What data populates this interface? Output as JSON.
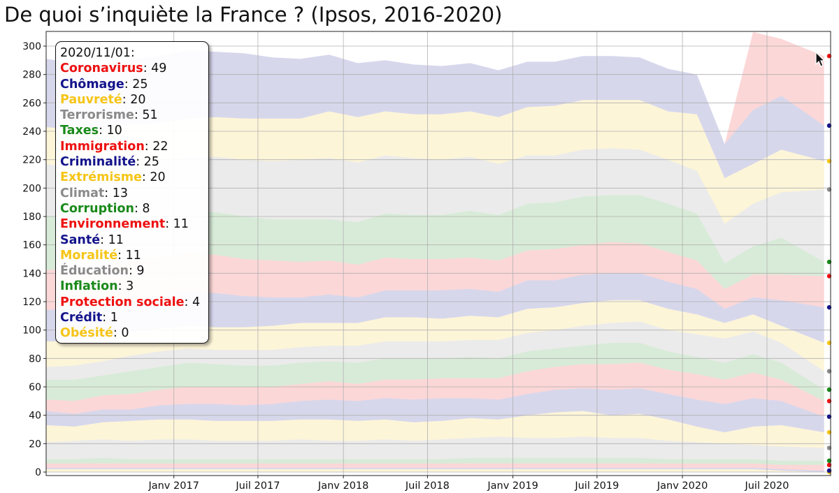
{
  "chart_data": {
    "type": "area",
    "title": "De quoi s’inquiète la France ? (Ipsos, 2016-2020)",
    "xlabel": "",
    "ylabel": "",
    "ylim": [
      0,
      300
    ],
    "yticks": [
      0,
      20,
      40,
      60,
      80,
      100,
      120,
      140,
      160,
      180,
      200,
      220,
      240,
      260,
      280,
      300
    ],
    "xticks": [
      {
        "label": "Janv 2017",
        "x": "2017-01-01"
      },
      {
        "label": "Juil 2017",
        "x": "2017-07-01"
      },
      {
        "label": "Janv 2018",
        "x": "2018-01-01"
      },
      {
        "label": "Juil 2018",
        "x": "2018-07-01"
      },
      {
        "label": "Janv 2019",
        "x": "2019-01-01"
      },
      {
        "label": "Juil 2019",
        "x": "2019-07-01"
      },
      {
        "label": "Janv 2020",
        "x": "2020-01-01"
      },
      {
        "label": "Juil 2020",
        "x": "2020-07-01"
      }
    ],
    "xlim": [
      "2016-04-01",
      "2020-11-15"
    ],
    "grid": true,
    "stacked": true,
    "x": [
      "2016-04-01",
      "2016-06-01",
      "2016-08-01",
      "2016-10-01",
      "2016-12-01",
      "2017-02-01",
      "2017-04-01",
      "2017-06-01",
      "2017-08-01",
      "2017-10-01",
      "2017-12-01",
      "2018-02-01",
      "2018-04-01",
      "2018-06-01",
      "2018-08-01",
      "2018-10-01",
      "2018-12-01",
      "2019-02-01",
      "2019-04-01",
      "2019-06-01",
      "2019-08-01",
      "2019-10-01",
      "2019-12-01",
      "2020-02-01",
      "2020-04-01",
      "2020-06-01",
      "2020-08-01",
      "2020-11-01"
    ],
    "series": [
      {
        "name": "Obésité",
        "color": "#f5c518",
        "values": [
          2,
          2,
          2,
          2,
          2,
          2,
          2,
          2,
          2,
          2,
          2,
          2,
          2,
          2,
          2,
          2,
          2,
          2,
          2,
          2,
          2,
          2,
          2,
          2,
          2,
          2,
          1,
          0
        ]
      },
      {
        "name": "Crédit",
        "color": "#14148c",
        "values": [
          1,
          1,
          1,
          1,
          1,
          1,
          1,
          1,
          1,
          1,
          1,
          1,
          1,
          1,
          1,
          1,
          1,
          1,
          1,
          1,
          1,
          1,
          1,
          1,
          1,
          1,
          1,
          1
        ]
      },
      {
        "name": "Protection sociale",
        "color": "#ee1111",
        "values": [
          3,
          3,
          3,
          3,
          3,
          3,
          3,
          3,
          3,
          3,
          3,
          3,
          3,
          3,
          3,
          3,
          3,
          3,
          3,
          3,
          3,
          3,
          3,
          3,
          3,
          3,
          3,
          4
        ]
      },
      {
        "name": "Inflation",
        "color": "#1a8a1a",
        "values": [
          3,
          3,
          4,
          3,
          3,
          3,
          3,
          3,
          3,
          3,
          3,
          3,
          3,
          3,
          3,
          4,
          4,
          4,
          4,
          4,
          4,
          4,
          3,
          3,
          3,
          3,
          3,
          3
        ]
      },
      {
        "name": "Éducation",
        "color": "#8a8a8a",
        "values": [
          12,
          13,
          13,
          13,
          14,
          14,
          13,
          13,
          13,
          14,
          13,
          13,
          14,
          13,
          14,
          14,
          15,
          14,
          14,
          15,
          14,
          14,
          13,
          12,
          11,
          10,
          10,
          9
        ]
      },
      {
        "name": "Moralité",
        "color": "#f5c518",
        "values": [
          12,
          10,
          12,
          14,
          14,
          14,
          14,
          14,
          14,
          14,
          15,
          14,
          14,
          13,
          13,
          14,
          12,
          16,
          18,
          18,
          16,
          17,
          15,
          11,
          8,
          13,
          15,
          11
        ]
      },
      {
        "name": "Santé",
        "color": "#14148c",
        "values": [
          10,
          9,
          9,
          8,
          10,
          11,
          12,
          11,
          12,
          13,
          14,
          14,
          15,
          16,
          16,
          14,
          14,
          15,
          16,
          16,
          18,
          18,
          18,
          19,
          20,
          20,
          17,
          11
        ]
      },
      {
        "name": "Environnement",
        "color": "#ee1111",
        "values": [
          8,
          9,
          10,
          11,
          11,
          12,
          12,
          13,
          12,
          12,
          13,
          12,
          13,
          14,
          14,
          14,
          15,
          16,
          16,
          17,
          18,
          18,
          17,
          18,
          17,
          18,
          15,
          11
        ]
      },
      {
        "name": "Corruption",
        "color": "#1a8a1a",
        "values": [
          14,
          15,
          14,
          16,
          16,
          17,
          16,
          15,
          15,
          15,
          14,
          15,
          15,
          15,
          14,
          15,
          14,
          14,
          13,
          13,
          15,
          14,
          13,
          12,
          12,
          13,
          12,
          8
        ]
      },
      {
        "name": "Climat",
        "color": "#8a8a8a",
        "values": [
          9,
          10,
          10,
          11,
          11,
          10,
          10,
          11,
          11,
          11,
          11,
          12,
          12,
          12,
          12,
          12,
          13,
          13,
          13,
          14,
          14,
          15,
          15,
          16,
          17,
          16,
          14,
          13
        ]
      },
      {
        "name": "Extrémisme",
        "color": "#f5c518",
        "values": [
          18,
          17,
          17,
          17,
          16,
          16,
          16,
          16,
          17,
          17,
          16,
          16,
          17,
          17,
          16,
          17,
          16,
          17,
          16,
          16,
          16,
          15,
          15,
          14,
          11,
          12,
          12,
          20
        ]
      },
      {
        "name": "Criminalité",
        "color": "#14148c",
        "values": [
          22,
          24,
          22,
          22,
          23,
          24,
          24,
          22,
          20,
          18,
          20,
          18,
          19,
          19,
          20,
          19,
          18,
          20,
          19,
          20,
          19,
          19,
          19,
          18,
          10,
          12,
          18,
          25
        ]
      },
      {
        "name": "Immigration",
        "color": "#ee1111",
        "values": [
          28,
          28,
          28,
          28,
          27,
          27,
          27,
          26,
          26,
          25,
          24,
          23,
          23,
          22,
          22,
          22,
          22,
          21,
          22,
          21,
          22,
          21,
          21,
          20,
          14,
          16,
          18,
          22
        ]
      },
      {
        "name": "Taxes",
        "color": "#1a8a1a",
        "values": [
          38,
          36,
          35,
          33,
          32,
          30,
          30,
          30,
          29,
          30,
          29,
          30,
          31,
          31,
          31,
          33,
          32,
          33,
          33,
          34,
          33,
          34,
          34,
          33,
          18,
          20,
          26,
          10
        ]
      },
      {
        "name": "Terrorisme",
        "color": "#8a8a8a",
        "values": [
          37,
          34,
          32,
          35,
          36,
          38,
          39,
          40,
          41,
          42,
          43,
          42,
          41,
          40,
          39,
          38,
          36,
          34,
          33,
          33,
          33,
          32,
          31,
          30,
          28,
          30,
          32,
          51
        ]
      },
      {
        "name": "Pauvreté",
        "color": "#f5c518",
        "values": [
          26,
          27,
          28,
          28,
          27,
          27,
          28,
          29,
          30,
          29,
          33,
          32,
          31,
          31,
          32,
          32,
          33,
          34,
          35,
          35,
          34,
          35,
          34,
          40,
          32,
          28,
          30,
          20
        ]
      },
      {
        "name": "Chômage",
        "color": "#14148c",
        "values": [
          48,
          47,
          46,
          46,
          47,
          48,
          46,
          46,
          43,
          42,
          40,
          38,
          36,
          35,
          34,
          34,
          33,
          32,
          31,
          31,
          31,
          30,
          30,
          28,
          24,
          38,
          38,
          25
        ]
      },
      {
        "name": "Coronavirus",
        "color": "#ee1111",
        "values": [
          0,
          0,
          0,
          0,
          0,
          0,
          0,
          0,
          0,
          0,
          0,
          0,
          0,
          0,
          0,
          0,
          0,
          0,
          0,
          0,
          0,
          0,
          0,
          0,
          0,
          55,
          40,
          49
        ]
      }
    ],
    "tooltip": {
      "date": "2020/11/01:",
      "entries": [
        {
          "name": "Coronavirus",
          "value": "49",
          "color": "#ee1111"
        },
        {
          "name": "Chômage",
          "value": "25",
          "color": "#14148c"
        },
        {
          "name": "Pauvreté",
          "value": "20",
          "color": "#f5c518"
        },
        {
          "name": "Terrorisme",
          "value": "51",
          "color": "#8a8a8a"
        },
        {
          "name": "Taxes",
          "value": "10",
          "color": "#1a8a1a"
        },
        {
          "name": "Immigration",
          "value": "22",
          "color": "#ee1111"
        },
        {
          "name": "Criminalité",
          "value": "25",
          "color": "#14148c"
        },
        {
          "name": "Extrémisme",
          "value": "20",
          "color": "#f5c518"
        },
        {
          "name": "Climat",
          "value": "13",
          "color": "#8a8a8a"
        },
        {
          "name": "Corruption",
          "value": "8",
          "color": "#1a8a1a"
        },
        {
          "name": "Environnement",
          "value": "11",
          "color": "#ee1111"
        },
        {
          "name": "Santé",
          "value": "11",
          "color": "#14148c"
        },
        {
          "name": "Moralité",
          "value": "11",
          "color": "#f5c518"
        },
        {
          "name": "Éducation",
          "value": "9",
          "color": "#8a8a8a"
        },
        {
          "name": "Inflation",
          "value": "3",
          "color": "#1a8a1a"
        },
        {
          "name": "Protection sociale",
          "value": "4",
          "color": "#ee1111"
        },
        {
          "name": "Crédit",
          "value": "1",
          "color": "#14148c"
        },
        {
          "name": "Obésité",
          "value": "0",
          "color": "#f5c518"
        }
      ]
    }
  }
}
